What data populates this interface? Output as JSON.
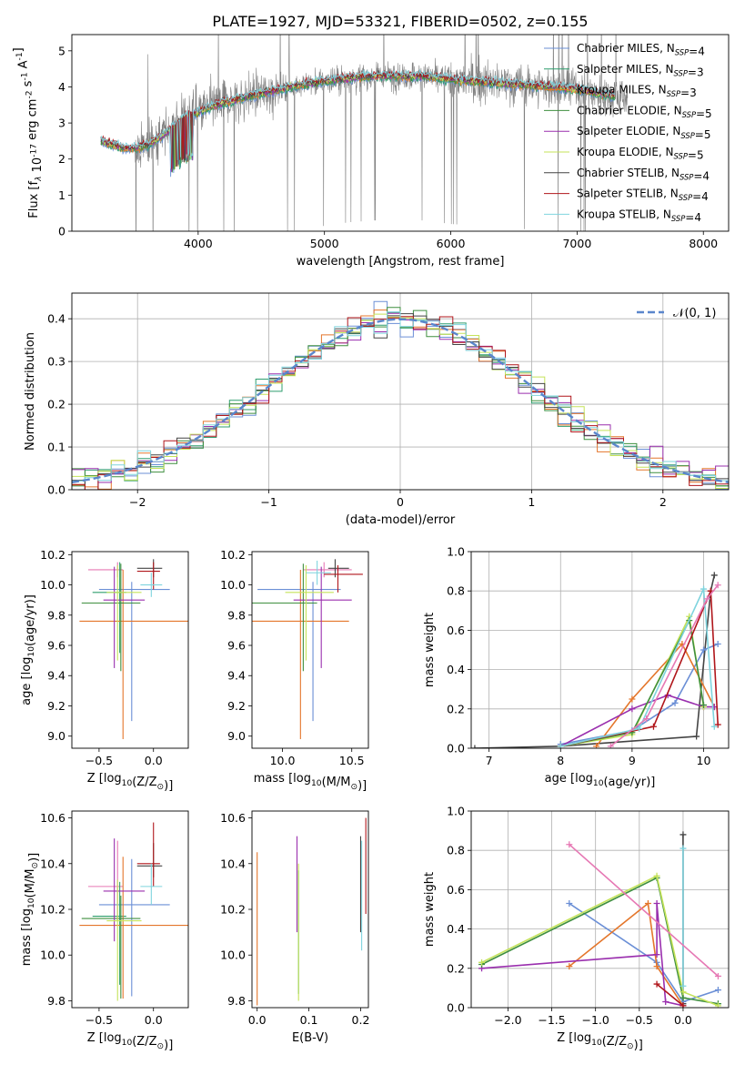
{
  "figure": {
    "title": "PLATE=1927, MJD=53321, FIBERID=0502, z=0.155",
    "colors": {
      "Chabrier MILES": "#6b8fd6",
      "Salpeter MILES": "#2f9e6e",
      "Kroupa MILES": "#e4762b",
      "Chabrier ELODIE": "#3f8f3f",
      "Salpeter ELODIE": "#9a2fae",
      "Kroupa ELODIE": "#c5e35a",
      "Chabrier STELIB": "#444444",
      "Salpeter STELIB": "#b0161b",
      "Kroupa STELIB": "#7fd4de",
      "Pink": "#e678b4",
      "data": "#808080",
      "normal": "#5a86cc"
    }
  },
  "chart_data": [
    {
      "id": "spectrum",
      "type": "line",
      "title": "PLATE=1927, MJD=53321, FIBERID=0502, z=0.155",
      "xlabel": "wavelength [Angstrom, rest frame]",
      "ylabel": "Flux [f_λ 10^-17 erg cm^-2 s^-1 A^-1]",
      "xlim": [
        3000,
        8200
      ],
      "ylim": [
        0,
        5.45
      ],
      "xticks": [
        4000,
        5000,
        6000,
        7000,
        8000
      ],
      "yticks": [
        0,
        1,
        2,
        3,
        4,
        5
      ],
      "legend_position": "top-right",
      "series": [
        {
          "name": "Chabrier MILES, N_SSP=4",
          "color": "#6b8fd6"
        },
        {
          "name": "Salpeter MILES, N_SSP=3",
          "color": "#2f9e6e"
        },
        {
          "name": "Kroupa MILES, N_SSP=3",
          "color": "#e4762b"
        },
        {
          "name": "Chabrier ELODIE, N_SSP=5",
          "color": "#3f8f3f"
        },
        {
          "name": "Salpeter ELODIE, N_SSP=5",
          "color": "#9a2fae"
        },
        {
          "name": "Kroupa ELODIE, N_SSP=5",
          "color": "#c5e35a"
        },
        {
          "name": "Chabrier STELIB, N_SSP=4",
          "color": "#444444"
        },
        {
          "name": "Salpeter STELIB, N_SSP=4",
          "color": "#b0161b"
        },
        {
          "name": "Kroupa STELIB, N_SSP=4",
          "color": "#7fd4de"
        }
      ],
      "continuum": [
        [
          3230,
          2.5
        ],
        [
          3400,
          2.3
        ],
        [
          3500,
          2.3
        ],
        [
          3600,
          2.4
        ],
        [
          3700,
          2.6
        ],
        [
          3800,
          2.9
        ],
        [
          3900,
          3.2
        ],
        [
          4000,
          3.3
        ],
        [
          4100,
          3.45
        ],
        [
          4200,
          3.55
        ],
        [
          4400,
          3.75
        ],
        [
          4600,
          3.9
        ],
        [
          4800,
          4.05
        ],
        [
          5000,
          4.15
        ],
        [
          5200,
          4.25
        ],
        [
          5400,
          4.3
        ],
        [
          5600,
          4.3
        ],
        [
          5800,
          4.3
        ],
        [
          6000,
          4.2
        ],
        [
          6200,
          4.15
        ],
        [
          6400,
          4.1
        ],
        [
          6600,
          4.05
        ],
        [
          6800,
          4.0
        ],
        [
          7000,
          3.95
        ],
        [
          7200,
          3.8
        ],
        [
          7400,
          3.7
        ]
      ]
    },
    {
      "id": "residuals",
      "type": "line",
      "xlabel": "(data-model)/error",
      "ylabel": "Normed distribution",
      "xlim": [
        -2.5,
        2.5
      ],
      "ylim": [
        0,
        0.46
      ],
      "xticks": [
        -2,
        -1,
        0,
        1,
        2
      ],
      "yticks": [
        0.0,
        0.1,
        0.2,
        0.3,
        0.4
      ],
      "legend_position": "top-right",
      "legend": [
        "𝒩(0, 1)"
      ],
      "bin_width": 0.1
    },
    {
      "id": "age_vs_Z",
      "type": "scatter",
      "xlabel": "Z [log10(Z/Z⊙)]",
      "ylabel": "age  [log10(age/yr)]",
      "xlim": [
        -0.75,
        0.32
      ],
      "ylim": [
        8.92,
        10.22
      ],
      "xticks": [
        -0.5,
        0.0
      ],
      "yticks": [
        9.0,
        9.2,
        9.4,
        9.6,
        9.8,
        10.0,
        10.2
      ],
      "points": [
        {
          "color": "#e678b4",
          "x": -0.33,
          "xerr": [
            0.27,
            0.05
          ],
          "y": 10.1,
          "yerr": [
            0.05,
            0.05
          ]
        },
        {
          "color": "#6b8fd6",
          "x": -0.2,
          "xerr": [
            0.3,
            0.35
          ],
          "y": 9.97,
          "yerr": [
            0.87,
            0.05
          ]
        },
        {
          "color": "#2f9e6e",
          "x": -0.31,
          "xerr": [
            0.25,
            0.06
          ],
          "y": 9.95,
          "yerr": [
            0.4,
            0.2
          ]
        },
        {
          "color": "#e4762b",
          "x": -0.28,
          "xerr": [
            0.4,
            0.6
          ],
          "y": 9.76,
          "yerr": [
            0.78,
            0.34
          ]
        },
        {
          "color": "#3f8f3f",
          "x": -0.3,
          "xerr": [
            0.36,
            0.18
          ],
          "y": 9.88,
          "yerr": [
            0.45,
            0.26
          ]
        },
        {
          "color": "#9a2fae",
          "x": -0.36,
          "xerr": [
            0.1,
            0.28
          ],
          "y": 9.9,
          "yerr": [
            0.45,
            0.22
          ]
        },
        {
          "color": "#c5e35a",
          "x": -0.33,
          "xerr": [
            0.1,
            0.22
          ],
          "y": 9.95,
          "yerr": [
            0.45,
            0.18
          ]
        },
        {
          "color": "#444444",
          "x": 0.0,
          "xerr": [
            0.15,
            0.08
          ],
          "y": 10.11,
          "yerr": [
            0.06,
            0.06
          ]
        },
        {
          "color": "#b0161b",
          "x": 0.0,
          "xerr": [
            0.15,
            0.06
          ],
          "y": 10.09,
          "yerr": [
            0.12,
            0.06
          ]
        },
        {
          "color": "#7fd4de",
          "x": -0.02,
          "xerr": [
            0.1,
            0.1
          ],
          "y": 10.0,
          "yerr": [
            0.08,
            0.08
          ]
        }
      ]
    },
    {
      "id": "age_vs_mass",
      "type": "scatter",
      "xlabel": "mass [log10(M/M⊙)]",
      "ylabel": "",
      "xlim": [
        9.78,
        10.62
      ],
      "ylim": [
        8.92,
        10.22
      ],
      "xticks": [
        10.0,
        10.5
      ],
      "yticks": [
        9.0,
        9.2,
        9.4,
        9.6,
        9.8,
        10.0,
        10.2
      ],
      "points": [
        {
          "color": "#e678b4",
          "x": 10.3,
          "xerr": [
            0.15,
            0.2
          ],
          "y": 10.1,
          "yerr": [
            0.05,
            0.05
          ]
        },
        {
          "color": "#6b8fd6",
          "x": 10.22,
          "xerr": [
            0.4,
            0.2
          ],
          "y": 9.97,
          "yerr": [
            0.87,
            0.05
          ]
        },
        {
          "color": "#e4762b",
          "x": 10.13,
          "xerr": [
            0.35,
            0.35
          ],
          "y": 9.76,
          "yerr": [
            0.78,
            0.34
          ]
        },
        {
          "color": "#3f8f3f",
          "x": 10.15,
          "xerr": [
            0.4,
            0.1
          ],
          "y": 9.88,
          "yerr": [
            0.45,
            0.26
          ]
        },
        {
          "color": "#9a2fae",
          "x": 10.28,
          "xerr": [
            0.2,
            0.22
          ],
          "y": 9.9,
          "yerr": [
            0.45,
            0.22
          ]
        },
        {
          "color": "#c5e35a",
          "x": 10.17,
          "xerr": [
            0.15,
            0.2
          ],
          "y": 9.95,
          "yerr": [
            0.45,
            0.18
          ]
        },
        {
          "color": "#444444",
          "x": 10.38,
          "xerr": [
            0.05,
            0.1
          ],
          "y": 10.11,
          "yerr": [
            0.06,
            0.06
          ]
        },
        {
          "color": "#b0161b",
          "x": 10.4,
          "xerr": [
            0.1,
            0.18
          ],
          "y": 10.07,
          "yerr": [
            0.12,
            0.06
          ]
        },
        {
          "color": "#7fd4de",
          "x": 10.25,
          "xerr": [
            0.08,
            0.1
          ],
          "y": 10.08,
          "yerr": [
            0.08,
            0.08
          ]
        }
      ]
    },
    {
      "id": "mass_weight_vs_age",
      "type": "line",
      "xlabel": "age  [log10(age/yr)]",
      "ylabel": "mass weight",
      "xlim": [
        6.75,
        10.35
      ],
      "ylim": [
        0.0,
        1.0
      ],
      "xticks": [
        7,
        8,
        9,
        10
      ],
      "yticks": [
        0.0,
        0.2,
        0.4,
        0.6,
        0.8,
        1.0
      ],
      "series": [
        {
          "color": "#444444",
          "x": [
            6.8,
            8.0,
            9.9,
            10.1,
            10.15
          ],
          "y": [
            0.0,
            0.01,
            0.06,
            0.8,
            0.88
          ]
        },
        {
          "color": "#6b8fd6",
          "x": [
            8.0,
            9.0,
            9.6,
            10.0,
            10.2
          ],
          "y": [
            0.02,
            0.09,
            0.23,
            0.5,
            0.53
          ]
        },
        {
          "color": "#e4762b",
          "x": [
            8.5,
            9.0,
            9.7,
            10.15
          ],
          "y": [
            0.01,
            0.25,
            0.53,
            0.21
          ]
        },
        {
          "color": "#9a2fae",
          "x": [
            8.0,
            9.0,
            9.5,
            10.0,
            10.15
          ],
          "y": [
            0.01,
            0.2,
            0.27,
            0.21,
            0.21
          ]
        },
        {
          "color": "#c5e35a",
          "x": [
            8.0,
            9.0,
            9.8,
            10.0
          ],
          "y": [
            0.01,
            0.07,
            0.67,
            0.21
          ]
        },
        {
          "color": "#3f8f3f",
          "x": [
            8.0,
            9.0,
            9.8,
            10.0
          ],
          "y": [
            0.01,
            0.08,
            0.65,
            0.22
          ]
        },
        {
          "color": "#b0161b",
          "x": [
            8.0,
            9.3,
            10.1,
            10.2
          ],
          "y": [
            0.01,
            0.11,
            0.8,
            0.12
          ]
        },
        {
          "color": "#7fd4de",
          "x": [
            8.0,
            9.1,
            10.0,
            10.15
          ],
          "y": [
            0.01,
            0.1,
            0.81,
            0.11
          ]
        },
        {
          "color": "#e678b4",
          "x": [
            8.7,
            9.2,
            10.05,
            10.2
          ],
          "y": [
            0.01,
            0.15,
            0.76,
            0.83
          ]
        }
      ]
    },
    {
      "id": "mass_vs_Z",
      "type": "scatter",
      "xlabel": "Z [log10(Z/Z⊙)]",
      "ylabel": "mass [log10(M/M⊙)]",
      "xlim": [
        -0.75,
        0.32
      ],
      "ylim": [
        9.77,
        10.63
      ],
      "xticks": [
        -0.5,
        0.0
      ],
      "yticks": [
        9.8,
        10.0,
        10.2,
        10.4,
        10.6
      ],
      "points": [
        {
          "color": "#e678b4",
          "x": -0.33,
          "xerr": [
            0.27,
            0.05
          ],
          "y": 10.3,
          "yerr": [
            0.15,
            0.2
          ]
        },
        {
          "color": "#6b8fd6",
          "x": -0.2,
          "xerr": [
            0.3,
            0.35
          ],
          "y": 10.22,
          "yerr": [
            0.4,
            0.2
          ]
        },
        {
          "color": "#2f9e6e",
          "x": -0.31,
          "xerr": [
            0.25,
            0.06
          ],
          "y": 10.17,
          "yerr": [
            0.3,
            0.15
          ]
        },
        {
          "color": "#e4762b",
          "x": -0.28,
          "xerr": [
            0.4,
            0.6
          ],
          "y": 10.13,
          "yerr": [
            0.32,
            0.3
          ]
        },
        {
          "color": "#3f8f3f",
          "x": -0.3,
          "xerr": [
            0.36,
            0.18
          ],
          "y": 10.16,
          "yerr": [
            0.35,
            0.1
          ]
        },
        {
          "color": "#9a2fae",
          "x": -0.36,
          "xerr": [
            0.1,
            0.28
          ],
          "y": 10.28,
          "yerr": [
            0.22,
            0.23
          ]
        },
        {
          "color": "#c5e35a",
          "x": -0.33,
          "xerr": [
            0.1,
            0.22
          ],
          "y": 10.15,
          "yerr": [
            0.35,
            0.18
          ]
        },
        {
          "color": "#444444",
          "x": 0.0,
          "xerr": [
            0.15,
            0.08
          ],
          "y": 10.39,
          "yerr": [
            0.05,
            0.1
          ]
        },
        {
          "color": "#b0161b",
          "x": 0.0,
          "xerr": [
            0.15,
            0.06
          ],
          "y": 10.4,
          "yerr": [
            0.1,
            0.18
          ]
        },
        {
          "color": "#7fd4de",
          "x": -0.02,
          "xerr": [
            0.1,
            0.1
          ],
          "y": 10.3,
          "yerr": [
            0.08,
            0.1
          ]
        }
      ]
    },
    {
      "id": "mass_vs_ebv",
      "type": "scatter",
      "xlabel": "E(B-V)",
      "ylabel": "",
      "xlim": [
        -0.01,
        0.215
      ],
      "ylim": [
        9.77,
        10.63
      ],
      "xticks": [
        0.0,
        0.1,
        0.2
      ],
      "yticks": [
        9.8,
        10.0,
        10.2,
        10.4,
        10.6
      ],
      "points": [
        {
          "color": "#e4762b",
          "x": 0.0,
          "y": 10.13,
          "yerr": [
            0.35,
            0.32
          ]
        },
        {
          "color": "#9a2fae",
          "x": 0.077,
          "y": 10.3,
          "yerr": [
            0.2,
            0.22
          ]
        },
        {
          "color": "#2f9e6e",
          "x": 0.08,
          "y": 10.15,
          "yerr": [
            0.32,
            0.22
          ]
        },
        {
          "color": "#c5e35a",
          "x": 0.08,
          "y": 10.1,
          "yerr": [
            0.3,
            0.3
          ]
        },
        {
          "color": "#444444",
          "x": 0.2,
          "y": 10.4,
          "yerr": [
            0.3,
            0.12
          ]
        },
        {
          "color": "#7fd4de",
          "x": 0.202,
          "y": 10.2,
          "yerr": [
            0.18,
            0.3
          ]
        },
        {
          "color": "#b0161b",
          "x": 0.21,
          "y": 10.38,
          "yerr": [
            0.2,
            0.22
          ]
        }
      ]
    },
    {
      "id": "mass_weight_vs_Z",
      "type": "line",
      "xlabel": "Z [log10(Z/Z⊙)]",
      "ylabel": "mass weight",
      "xlim": [
        -2.42,
        0.52
      ],
      "ylim": [
        0.0,
        1.0
      ],
      "xticks": [
        -2.0,
        -1.5,
        -1.0,
        -0.5,
        0.0
      ],
      "yticks": [
        0.0,
        0.2,
        0.4,
        0.6,
        0.8,
        1.0
      ],
      "series": [
        {
          "color": "#444444",
          "x": [
            0.0,
            0.0
          ],
          "y": [
            0.02,
            0.88
          ]
        },
        {
          "color": "#6b8fd6",
          "x": [
            -1.3,
            -0.3,
            0.0,
            0.4
          ],
          "y": [
            0.53,
            0.23,
            0.03,
            0.09
          ]
        },
        {
          "color": "#e4762b",
          "x": [
            -1.3,
            -0.4,
            -0.3,
            0.0
          ],
          "y": [
            0.21,
            0.53,
            0.21,
            0.01
          ]
        },
        {
          "color": "#9a2fae",
          "x": [
            -2.3,
            -0.3,
            -0.3,
            -0.2,
            0.0
          ],
          "y": [
            0.2,
            0.27,
            0.53,
            0.03,
            0.01
          ]
        },
        {
          "color": "#3f8f3f",
          "x": [
            -2.3,
            -0.3,
            0.0,
            0.4
          ],
          "y": [
            0.22,
            0.66,
            0.05,
            0.02
          ]
        },
        {
          "color": "#c5e35a",
          "x": [
            -2.3,
            -0.3,
            0.0,
            0.4
          ],
          "y": [
            0.23,
            0.67,
            0.08,
            0.01
          ]
        },
        {
          "color": "#b0161b",
          "x": [
            -0.3,
            0.0
          ],
          "y": [
            0.12,
            0.01
          ]
        },
        {
          "color": "#7fd4de",
          "x": [
            0.0,
            0.0
          ],
          "y": [
            0.11,
            0.81
          ]
        },
        {
          "color": "#e678b4",
          "x": [
            -1.3,
            0.4
          ],
          "y": [
            0.83,
            0.16
          ]
        }
      ]
    }
  ]
}
